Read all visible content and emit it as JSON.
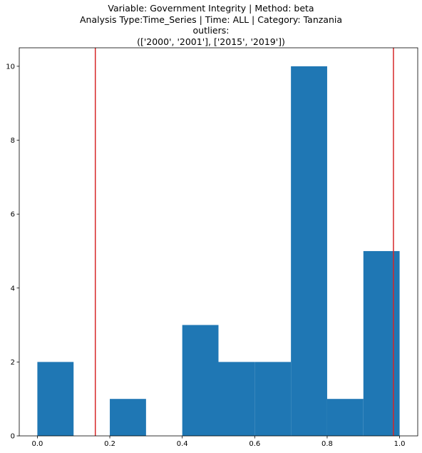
{
  "title_lines": [
    "Variable: Government Integrity | Method: beta",
    "Analysis Type:Time_Series | Time: ALL | Category: Tanzania",
    "outliers:",
    "(['2000', '2001'], ['2015', '2019'])"
  ],
  "colors": {
    "bar": "#1f77b4",
    "vline": "#d62728"
  },
  "chart_data": {
    "type": "bar",
    "subtype": "histogram",
    "bins": [
      0.0,
      0.1,
      0.2,
      0.3,
      0.4,
      0.5,
      0.6,
      0.7,
      0.8,
      0.9,
      1.0
    ],
    "counts": [
      2,
      0,
      1,
      0,
      3,
      2,
      2,
      10,
      1,
      5
    ],
    "vlines": [
      0.16,
      0.983
    ],
    "xlim": [
      -0.05,
      1.05
    ],
    "ylim": [
      0,
      10.5
    ],
    "xticks": [
      "0.0",
      "0.2",
      "0.4",
      "0.6",
      "0.8",
      "1.0"
    ],
    "yticks": [
      "0",
      "2",
      "4",
      "6",
      "8",
      "10"
    ],
    "xlabel": "",
    "ylabel": "",
    "grid": false
  }
}
